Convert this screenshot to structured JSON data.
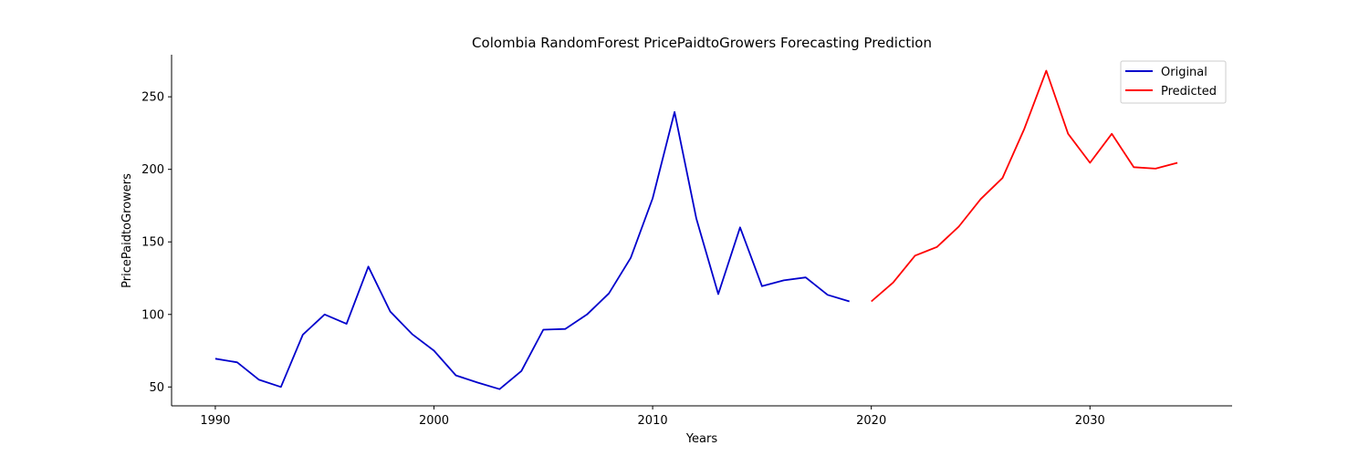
{
  "chart_data": {
    "type": "line",
    "title": "Colombia RandomForest PricePaidtoGrowers Forecasting Prediction",
    "xlabel": "Years",
    "ylabel": "PricePaidtoGrowers",
    "xlim": [
      1988,
      2036.5
    ],
    "ylim": [
      37,
      279
    ],
    "xticks": [
      1990,
      2000,
      2010,
      2020,
      2030
    ],
    "yticks": [
      50,
      100,
      150,
      200,
      250
    ],
    "grid": false,
    "legend_position": "top-right",
    "series": [
      {
        "name": "Original",
        "color": "#0000cc",
        "x": [
          1990,
          1991,
          1992,
          1993,
          1994,
          1995,
          1996,
          1997,
          1998,
          1999,
          2000,
          2001,
          2002,
          2003,
          2004,
          2005,
          2006,
          2007,
          2008,
          2009,
          2010,
          2011,
          2012,
          2013,
          2014,
          2015,
          2016,
          2017,
          2018,
          2019
        ],
        "y": [
          69.5,
          67,
          55,
          50,
          86,
          100,
          93.5,
          133,
          102,
          86.5,
          75,
          58,
          53,
          48.5,
          61,
          89.5,
          90,
          100,
          114.5,
          139,
          180,
          239.5,
          166,
          114,
          160,
          119.5,
          123.5,
          125.5,
          113.5,
          109
        ]
      },
      {
        "name": "Predicted",
        "color": "#ff0000",
        "x": [
          2020,
          2021,
          2022,
          2023,
          2024,
          2025,
          2026,
          2027,
          2028,
          2029,
          2030,
          2031,
          2032,
          2033,
          2034
        ],
        "y": [
          109,
          122,
          140.5,
          146.5,
          160.5,
          179.5,
          194,
          228,
          268,
          224.5,
          204.5,
          224.5,
          201.5,
          200.5,
          204.5
        ]
      }
    ]
  }
}
